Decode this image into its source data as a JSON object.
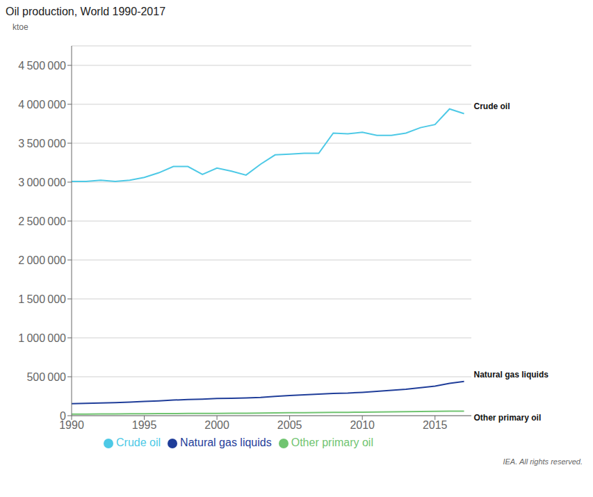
{
  "chart_data": {
    "type": "line",
    "title": "Oil production, World 1990-2017",
    "y_label": "ktoe",
    "x": [
      1990,
      1991,
      1992,
      1993,
      1994,
      1995,
      1996,
      1997,
      1998,
      1999,
      2000,
      2001,
      2002,
      2003,
      2004,
      2005,
      2006,
      2007,
      2008,
      2009,
      2010,
      2011,
      2012,
      2013,
      2014,
      2015,
      2016,
      2017
    ],
    "series": [
      {
        "name": "Crude oil",
        "color": "#4dc9e6",
        "values": [
          3010000,
          3010000,
          3025000,
          3010000,
          3025000,
          3060000,
          3120000,
          3200000,
          3200000,
          3100000,
          3180000,
          3140000,
          3090000,
          3230000,
          3350000,
          3360000,
          3370000,
          3370000,
          3630000,
          3620000,
          3640000,
          3600000,
          3600000,
          3630000,
          3700000,
          3740000,
          3940000,
          3880000
        ]
      },
      {
        "name": "Natural gas liquids",
        "color": "#1f3d99",
        "values": [
          155000,
          158000,
          163000,
          168000,
          175000,
          182000,
          190000,
          200000,
          207000,
          213000,
          220000,
          223000,
          228000,
          235000,
          248000,
          258000,
          268000,
          276000,
          286000,
          290000,
          300000,
          312000,
          325000,
          340000,
          360000,
          380000,
          415000,
          440000
        ]
      },
      {
        "name": "Other primary oil",
        "color": "#70c470",
        "values": [
          20000,
          21000,
          22000,
          23000,
          24000,
          25000,
          26000,
          27000,
          28000,
          29000,
          30000,
          31000,
          32000,
          33000,
          35000,
          37000,
          38000,
          40000,
          42000,
          43000,
          45000,
          47000,
          49000,
          51000,
          53000,
          55000,
          57000,
          59000
        ]
      }
    ],
    "xlim": [
      1990,
      2017.5
    ],
    "xticks": [
      1990,
      1995,
      2000,
      2005,
      2010,
      2015
    ],
    "ylim": [
      0,
      4750000
    ],
    "yticks": [
      0,
      {
        "value": 500000,
        "label": "500 000"
      },
      {
        "value": 1000000,
        "label": "1 000 000"
      },
      {
        "value": 1500000,
        "label": "1 500 000"
      },
      {
        "value": 2000000,
        "label": "2 000 000"
      },
      {
        "value": 2500000,
        "label": "2 500 000"
      },
      {
        "value": 3000000,
        "label": "3 000 000"
      },
      {
        "value": 3500000,
        "label": "3 500 000"
      },
      {
        "value": 4000000,
        "label": "4 000 000"
      },
      {
        "value": 4500000,
        "label": "4 500 000"
      }
    ],
    "grid": true,
    "legend": "bottom",
    "annotations": [
      "Crude oil",
      "Natural gas liquids",
      "Other primary oil",
      "IEA. All rights reserved."
    ]
  }
}
